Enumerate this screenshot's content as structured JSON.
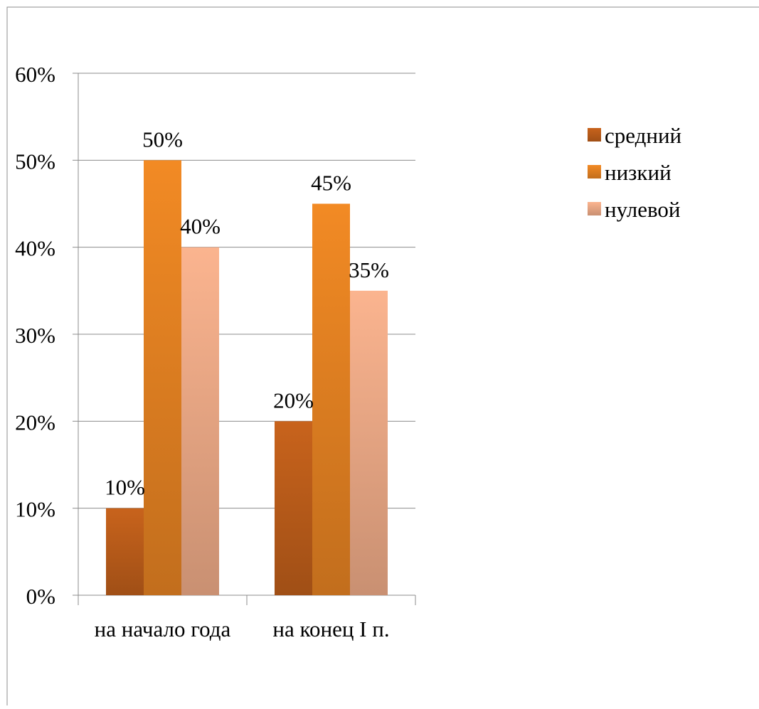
{
  "chart_data": {
    "type": "bar",
    "categories": [
      "на начало года",
      "на конец I п."
    ],
    "series": [
      {
        "name": "средний",
        "values": [
          10,
          20
        ],
        "labels": [
          "10%",
          "20%"
        ],
        "color": "#c8631c"
      },
      {
        "name": "низкий",
        "values": [
          50,
          45
        ],
        "labels": [
          "50%",
          "45%"
        ],
        "color": "#f28a24"
      },
      {
        "name": "нулевой",
        "values": [
          40,
          35
        ],
        "labels": [
          "40%",
          "35%"
        ],
        "color": "#fbb48f"
      }
    ],
    "y_ticks": [
      "0%",
      "10%",
      "20%",
      "30%",
      "40%",
      "50%",
      "60%"
    ],
    "ylim": [
      0,
      60
    ],
    "y_unit": "%",
    "grid": true,
    "legend_position": "right"
  }
}
